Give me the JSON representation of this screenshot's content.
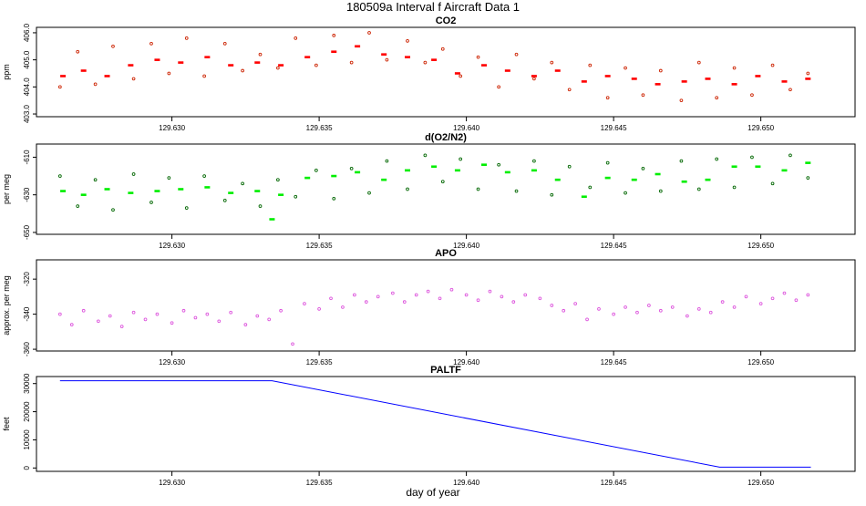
{
  "figure_title": "180509a   Interval f Aircraft Data 1",
  "xlabel": "day of year",
  "chart_data": [
    {
      "type": "scatter",
      "title": "CO2",
      "ylabel": "ppm",
      "xlim": [
        129.6254,
        129.6532
      ],
      "ylim": [
        402.9,
        406.2
      ],
      "xticks": [
        129.63,
        129.635,
        129.64,
        129.645,
        129.65
      ],
      "xtick_labels": [
        "129.630",
        "129.635",
        "129.640",
        "129.645",
        "129.650"
      ],
      "yticks": [
        403.0,
        404.0,
        405.0,
        406.0
      ],
      "ytick_labels": [
        "403.0",
        "404.0",
        "405.0",
        "406.0"
      ],
      "series": [
        {
          "name": "CO2 filled",
          "marker": "filled-dash",
          "color": "#ff0000",
          "x": [
            129.6263,
            129.627,
            129.6278,
            129.6286,
            129.6295,
            129.6303,
            129.6312,
            129.632,
            129.6329,
            129.6337,
            129.6346,
            129.6355,
            129.6363,
            129.6372,
            129.638,
            129.6389,
            129.6397,
            129.6406,
            129.6414,
            129.6423,
            129.6431,
            129.644,
            129.6448,
            129.6457,
            129.6465,
            129.6474,
            129.6482,
            129.6491,
            129.6499,
            129.6508,
            129.6516
          ],
          "y": [
            404.4,
            404.6,
            404.4,
            404.8,
            405.0,
            404.9,
            405.1,
            404.8,
            404.9,
            404.8,
            405.1,
            405.3,
            405.5,
            405.2,
            405.1,
            405.0,
            404.5,
            404.8,
            404.6,
            404.4,
            404.6,
            404.2,
            404.4,
            404.3,
            404.1,
            404.2,
            404.3,
            404.1,
            404.4,
            404.2,
            404.3
          ]
        },
        {
          "name": "CO2 open",
          "marker": "open-circle",
          "color": "#cc2200",
          "x": [
            129.6262,
            129.6268,
            129.6274,
            129.628,
            129.6287,
            129.6293,
            129.6299,
            129.6305,
            129.6311,
            129.6318,
            129.6324,
            129.633,
            129.6336,
            129.6342,
            129.6349,
            129.6355,
            129.6361,
            129.6367,
            129.6373,
            129.638,
            129.6386,
            129.6392,
            129.6398,
            129.6404,
            129.6411,
            129.6417,
            129.6423,
            129.6429,
            129.6435,
            129.6442,
            129.6448,
            129.6454,
            129.646,
            129.6466,
            129.6473,
            129.6479,
            129.6485,
            129.6491,
            129.6497,
            129.6504,
            129.651,
            129.6516
          ],
          "y": [
            404.0,
            405.3,
            404.1,
            405.5,
            404.3,
            405.6,
            404.5,
            405.8,
            404.4,
            405.6,
            404.6,
            405.2,
            404.7,
            405.8,
            404.8,
            405.9,
            404.9,
            406.0,
            405.0,
            405.7,
            404.9,
            405.4,
            404.4,
            405.1,
            404.0,
            405.2,
            404.3,
            404.9,
            403.9,
            404.8,
            403.6,
            404.7,
            403.7,
            404.6,
            403.5,
            404.9,
            403.6,
            404.7,
            403.7,
            404.8,
            403.9,
            404.5
          ]
        }
      ]
    },
    {
      "type": "scatter",
      "title": "d(O2/N2)",
      "ylabel": "per meg",
      "xlim": [
        129.6254,
        129.6532
      ],
      "ylim": [
        -651,
        -603
      ],
      "xticks": [
        129.63,
        129.635,
        129.64,
        129.645,
        129.65
      ],
      "xtick_labels": [
        "129.630",
        "129.635",
        "129.640",
        "129.645",
        "129.650"
      ],
      "yticks": [
        -650,
        -630,
        -610
      ],
      "ytick_labels": [
        "-650",
        "-630",
        "-610"
      ],
      "series": [
        {
          "name": "O2N2 filled",
          "marker": "filled-dash",
          "color": "#00ee00",
          "x": [
            129.6263,
            129.627,
            129.6278,
            129.6286,
            129.6295,
            129.6303,
            129.6312,
            129.632,
            129.6329,
            129.6334,
            129.6337,
            129.6346,
            129.6355,
            129.6363,
            129.6372,
            129.638,
            129.6389,
            129.6397,
            129.6406,
            129.6414,
            129.6423,
            129.6431,
            129.644,
            129.6448,
            129.6457,
            129.6465,
            129.6474,
            129.6482,
            129.6491,
            129.6499,
            129.6508,
            129.6516
          ],
          "y": [
            -628,
            -630,
            -627,
            -629,
            -628,
            -627,
            -626,
            -629,
            -628,
            -643,
            -630,
            -621,
            -620,
            -618,
            -622,
            -617,
            -615,
            -617,
            -614,
            -618,
            -617,
            -622,
            -631,
            -621,
            -622,
            -619,
            -623,
            -622,
            -615,
            -615,
            -617,
            -613
          ]
        },
        {
          "name": "O2N2 open",
          "marker": "open-circle",
          "color": "#006600",
          "x": [
            129.6262,
            129.6268,
            129.6274,
            129.628,
            129.6287,
            129.6293,
            129.6299,
            129.6305,
            129.6311,
            129.6318,
            129.6324,
            129.633,
            129.6336,
            129.6342,
            129.6349,
            129.6355,
            129.6361,
            129.6367,
            129.6373,
            129.638,
            129.6386,
            129.6392,
            129.6398,
            129.6404,
            129.6411,
            129.6417,
            129.6423,
            129.6429,
            129.6435,
            129.6442,
            129.6448,
            129.6454,
            129.646,
            129.6466,
            129.6473,
            129.6479,
            129.6485,
            129.6491,
            129.6497,
            129.6504,
            129.651,
            129.6516
          ],
          "y": [
            -620,
            -636,
            -622,
            -638,
            -619,
            -634,
            -621,
            -637,
            -620,
            -633,
            -624,
            -636,
            -622,
            -631,
            -617,
            -632,
            -616,
            -629,
            -612,
            -627,
            -609,
            -623,
            -611,
            -627,
            -614,
            -628,
            -612,
            -630,
            -615,
            -626,
            -613,
            -629,
            -616,
            -628,
            -612,
            -627,
            -611,
            -626,
            -610,
            -624,
            -609,
            -621
          ]
        }
      ]
    },
    {
      "type": "scatter",
      "title": "APO",
      "ylabel": "approx. per meg",
      "xlim": [
        129.6254,
        129.6532
      ],
      "ylim": [
        -361,
        -309
      ],
      "xticks": [
        129.63,
        129.635,
        129.64,
        129.645,
        129.65
      ],
      "xtick_labels": [
        "129.630",
        "129.635",
        "129.640",
        "129.645",
        "129.650"
      ],
      "yticks": [
        -360,
        -340,
        -320
      ],
      "ytick_labels": [
        "-360",
        "-340",
        "-320"
      ],
      "series": [
        {
          "name": "APO",
          "marker": "open-circle",
          "color": "#dd55dd",
          "x": [
            129.6262,
            129.6266,
            129.627,
            129.6275,
            129.6279,
            129.6283,
            129.6287,
            129.6291,
            129.6295,
            129.63,
            129.6304,
            129.6308,
            129.6312,
            129.6316,
            129.632,
            129.6325,
            129.6329,
            129.6333,
            129.6337,
            129.6341,
            129.6345,
            129.635,
            129.6354,
            129.6358,
            129.6362,
            129.6366,
            129.637,
            129.6375,
            129.6379,
            129.6383,
            129.6387,
            129.6391,
            129.6395,
            129.64,
            129.6404,
            129.6408,
            129.6412,
            129.6416,
            129.642,
            129.6425,
            129.6429,
            129.6433,
            129.6437,
            129.6441,
            129.6445,
            129.645,
            129.6454,
            129.6458,
            129.6462,
            129.6466,
            129.647,
            129.6475,
            129.6479,
            129.6483,
            129.6487,
            129.6491,
            129.6495,
            129.65,
            129.6504,
            129.6508,
            129.6512,
            129.6516
          ],
          "y": [
            -340,
            -346,
            -338,
            -344,
            -341,
            -347,
            -339,
            -343,
            -340,
            -345,
            -338,
            -342,
            -340,
            -344,
            -339,
            -346,
            -341,
            -343,
            -338,
            -357,
            -334,
            -337,
            -331,
            -336,
            -329,
            -333,
            -330,
            -328,
            -333,
            -329,
            -327,
            -331,
            -326,
            -329,
            -332,
            -327,
            -330,
            -333,
            -329,
            -331,
            -335,
            -338,
            -334,
            -343,
            -337,
            -340,
            -336,
            -339,
            -335,
            -338,
            -336,
            -341,
            -337,
            -339,
            -333,
            -336,
            -330,
            -334,
            -331,
            -328,
            -332,
            -329
          ]
        }
      ]
    },
    {
      "type": "line",
      "title": "PALTF",
      "ylabel": "feet",
      "xlim": [
        129.6254,
        129.6532
      ],
      "ylim": [
        -1200,
        32500
      ],
      "xticks": [
        129.63,
        129.635,
        129.64,
        129.645,
        129.65
      ],
      "xtick_labels": [
        "129.630",
        "129.635",
        "129.640",
        "129.645",
        "129.650"
      ],
      "yticks": [
        0,
        10000,
        20000,
        30000
      ],
      "ytick_labels": [
        "0",
        "10000",
        "20000",
        "30000"
      ],
      "series": [
        {
          "name": "PALTF",
          "color": "#0000ff",
          "x": [
            129.6262,
            129.6334,
            129.6486,
            129.6517
          ],
          "y": [
            31000,
            31000,
            300,
            300
          ]
        }
      ]
    }
  ]
}
